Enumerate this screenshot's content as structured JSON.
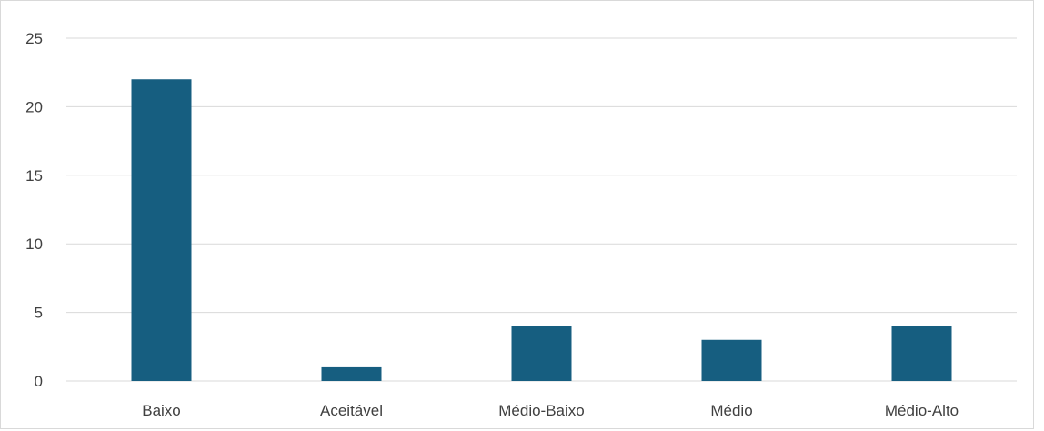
{
  "chart_data": {
    "type": "bar",
    "categories": [
      "Baixo",
      "Aceitável",
      "Médio-Baixo",
      "Médio",
      "Médio-Alto"
    ],
    "values": [
      22,
      1,
      4,
      3,
      4
    ],
    "ylim": [
      0,
      25
    ],
    "yticks": [
      0,
      5,
      10,
      15,
      20,
      25
    ],
    "grid": true,
    "legend": "none",
    "bar_color": "#165e80",
    "grid_color": "#d9d9d9"
  }
}
